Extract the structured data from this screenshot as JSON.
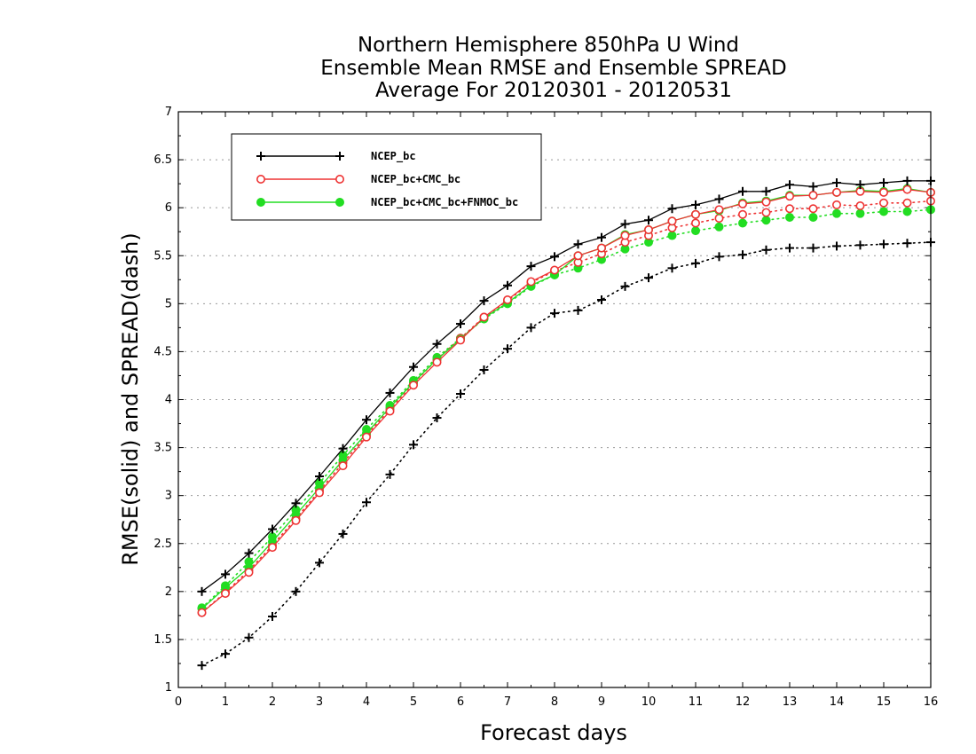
{
  "chart_data": {
    "type": "line",
    "title_lines": [
      "Northern Hemisphere 850hPa U Wind",
      "Ensemble Mean RMSE and Ensemble SPREAD",
      "Average For 20120301 - 20120531"
    ],
    "xlabel": "Forecast days",
    "ylabel": "RMSE(solid) and SPREAD(dash)",
    "xlim": [
      0,
      16
    ],
    "ylim": [
      1,
      7
    ],
    "xticks": [
      "0",
      "1",
      "2",
      "3",
      "4",
      "5",
      "6",
      "7",
      "8",
      "9",
      "10",
      "11",
      "12",
      "13",
      "14",
      "15",
      "16"
    ],
    "yticks": [
      "1",
      "1.5",
      "2",
      "2.5",
      "3",
      "3.5",
      "4",
      "4.5",
      "5",
      "5.5",
      "6",
      "6.5",
      "7"
    ],
    "grid": true,
    "legend_position": "top-left",
    "x": [
      0.5,
      1,
      1.5,
      2,
      2.5,
      3,
      3.5,
      4,
      4.5,
      5,
      5.5,
      6,
      6.5,
      7,
      7.5,
      8,
      8.5,
      9,
      9.5,
      10,
      10.5,
      11,
      11.5,
      12,
      12.5,
      13,
      13.5,
      14,
      14.5,
      15,
      15.5,
      16
    ],
    "series": [
      {
        "name": "NCEP_bc",
        "color": "#000000",
        "marker": "plus",
        "rmse": [
          2.0,
          2.18,
          2.4,
          2.65,
          2.92,
          3.2,
          3.49,
          3.79,
          4.07,
          4.34,
          4.58,
          4.79,
          5.03,
          5.19,
          5.39,
          5.49,
          5.62,
          5.69,
          5.83,
          5.87,
          5.99,
          6.03,
          6.09,
          6.17,
          6.17,
          6.24,
          6.22,
          6.26,
          6.24,
          6.26,
          6.28,
          6.28
        ],
        "spread": [
          1.23,
          1.35,
          1.52,
          1.74,
          2.0,
          2.3,
          2.6,
          2.93,
          3.22,
          3.53,
          3.81,
          4.06,
          4.31,
          4.53,
          4.75,
          4.9,
          4.93,
          5.04,
          5.18,
          5.27,
          5.37,
          5.42,
          5.49,
          5.51,
          5.56,
          5.58,
          5.58,
          5.6,
          5.61,
          5.62,
          5.63,
          5.64
        ]
      },
      {
        "name": "NCEP_bc+CMC_bc",
        "color": "#ee3333",
        "marker": "circle-open",
        "rmse": [
          1.78,
          1.98,
          2.2,
          2.46,
          2.74,
          3.03,
          3.31,
          3.61,
          3.88,
          4.15,
          4.39,
          4.62,
          4.86,
          5.04,
          5.23,
          5.35,
          5.5,
          5.58,
          5.71,
          5.77,
          5.86,
          5.93,
          5.98,
          6.04,
          6.06,
          6.12,
          6.13,
          6.16,
          6.17,
          6.16,
          6.19,
          6.16
        ],
        "spread": [
          1.78,
          1.99,
          2.22,
          2.48,
          2.76,
          3.05,
          3.34,
          3.63,
          3.9,
          4.17,
          4.42,
          4.64,
          4.86,
          5.03,
          5.22,
          5.34,
          5.43,
          5.52,
          5.64,
          5.71,
          5.79,
          5.84,
          5.89,
          5.93,
          5.95,
          5.99,
          5.99,
          6.03,
          6.02,
          6.05,
          6.05,
          6.07
        ]
      },
      {
        "name": "NCEP_bc+CMC_bc+FNMOC_bc",
        "color": "#22dd22",
        "marker": "circle-filled",
        "rmse": [
          1.82,
          2.04,
          2.25,
          2.52,
          2.8,
          3.08,
          3.37,
          3.65,
          3.92,
          4.18,
          4.42,
          4.63,
          4.85,
          5.01,
          5.19,
          5.3,
          5.5,
          5.58,
          5.72,
          5.77,
          5.86,
          5.93,
          5.97,
          6.05,
          6.07,
          6.13,
          6.13,
          6.16,
          6.18,
          6.17,
          6.2,
          6.16
        ],
        "spread": [
          1.83,
          2.06,
          2.31,
          2.57,
          2.85,
          3.13,
          3.42,
          3.69,
          3.94,
          4.2,
          4.44,
          4.64,
          4.84,
          5.0,
          5.18,
          5.3,
          5.37,
          5.46,
          5.57,
          5.64,
          5.71,
          5.76,
          5.8,
          5.84,
          5.87,
          5.9,
          5.9,
          5.94,
          5.94,
          5.96,
          5.96,
          5.98
        ]
      }
    ]
  }
}
